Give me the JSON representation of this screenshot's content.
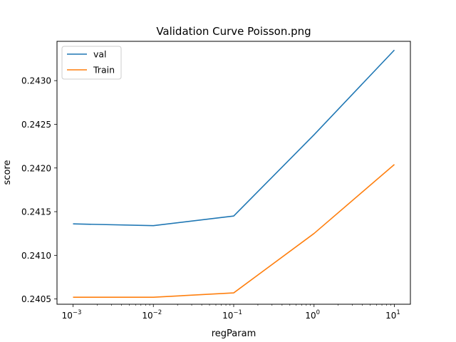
{
  "chart_data": {
    "type": "line",
    "title": "Validation Curve Poisson.png",
    "xlabel": "regParam",
    "ylabel": "score",
    "x_scale": "log",
    "x": [
      0.001,
      0.01,
      0.1,
      1,
      10
    ],
    "x_tick_labels": [
      {
        "base": "10",
        "exp": "−3"
      },
      {
        "base": "10",
        "exp": "−2"
      },
      {
        "base": "10",
        "exp": "−1"
      },
      {
        "base": "10",
        "exp": "0"
      },
      {
        "base": "10",
        "exp": "1"
      }
    ],
    "y_ticks": [
      0.2405,
      0.241,
      0.2415,
      0.242,
      0.2425,
      0.243
    ],
    "y_tick_labels": [
      "0.2405",
      "0.2410",
      "0.2415",
      "0.2420",
      "0.2425",
      "0.2430"
    ],
    "ylim": [
      0.24044,
      0.24345
    ],
    "grid": false,
    "legend_position": "top-left",
    "series": [
      {
        "name": "val",
        "color": "#1f77b4",
        "values": [
          0.24136,
          0.24134,
          0.24145,
          0.24238,
          0.24335
        ]
      },
      {
        "name": "Train",
        "color": "#ff7f0e",
        "values": [
          0.24052,
          0.24052,
          0.24057,
          0.24125,
          0.24204
        ]
      }
    ]
  }
}
